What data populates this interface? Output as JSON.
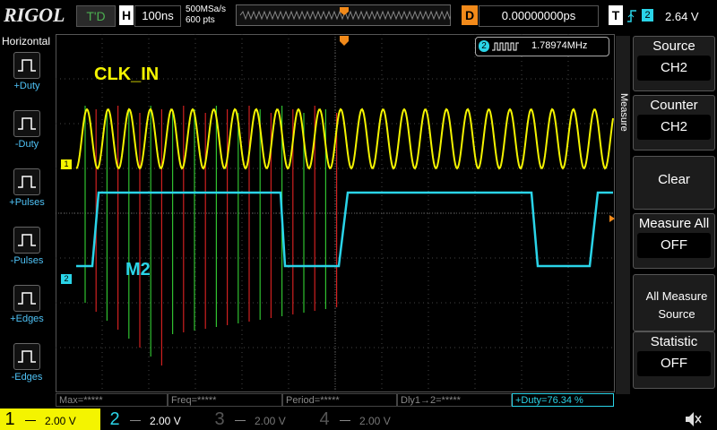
{
  "top_bar": {
    "brand": "RIGOL",
    "trigger_status": "T'D",
    "horizontal_label": "H",
    "timebase": "100ns",
    "sample_rate": "500MSa/s",
    "memory_depth": "600 pts",
    "delay_label": "D",
    "delay": "0.00000000ps",
    "trigger_label": "T",
    "trigger_source": "2",
    "trigger_level": "2.64 V"
  },
  "left_menu": {
    "title": "Horizontal",
    "items": [
      "+Duty",
      "-Duty",
      "+Pulses",
      "-Pulses",
      "+Edges",
      "-Edges"
    ]
  },
  "screen": {
    "channel1_label": "CLK_IN",
    "channel2_label": "M2",
    "channel1_marker": "1",
    "channel2_marker": "2",
    "counter_source": "2",
    "counter_value": "1.78974MHz"
  },
  "right_menu": {
    "title": "Measure",
    "items": [
      {
        "label": "Source",
        "value": "CH2"
      },
      {
        "label": "Counter",
        "value": "CH2"
      },
      {
        "label": "Clear"
      },
      {
        "label": "Measure All",
        "value": "OFF"
      },
      {
        "label": "All Measure Source"
      },
      {
        "label": "Statistic",
        "value": "OFF"
      }
    ]
  },
  "measurements": [
    "Max=*****",
    "Freq=*****",
    "Period=*****",
    "Dly1→2=*****",
    "+Duty=76.34 %"
  ],
  "channels": [
    {
      "number": "1",
      "scale": "2.00 V"
    },
    {
      "number": "2",
      "scale": "2.00 V"
    },
    {
      "number": "3",
      "scale": "2.00 V"
    },
    {
      "number": "4",
      "scale": "2.00 V"
    }
  ]
}
